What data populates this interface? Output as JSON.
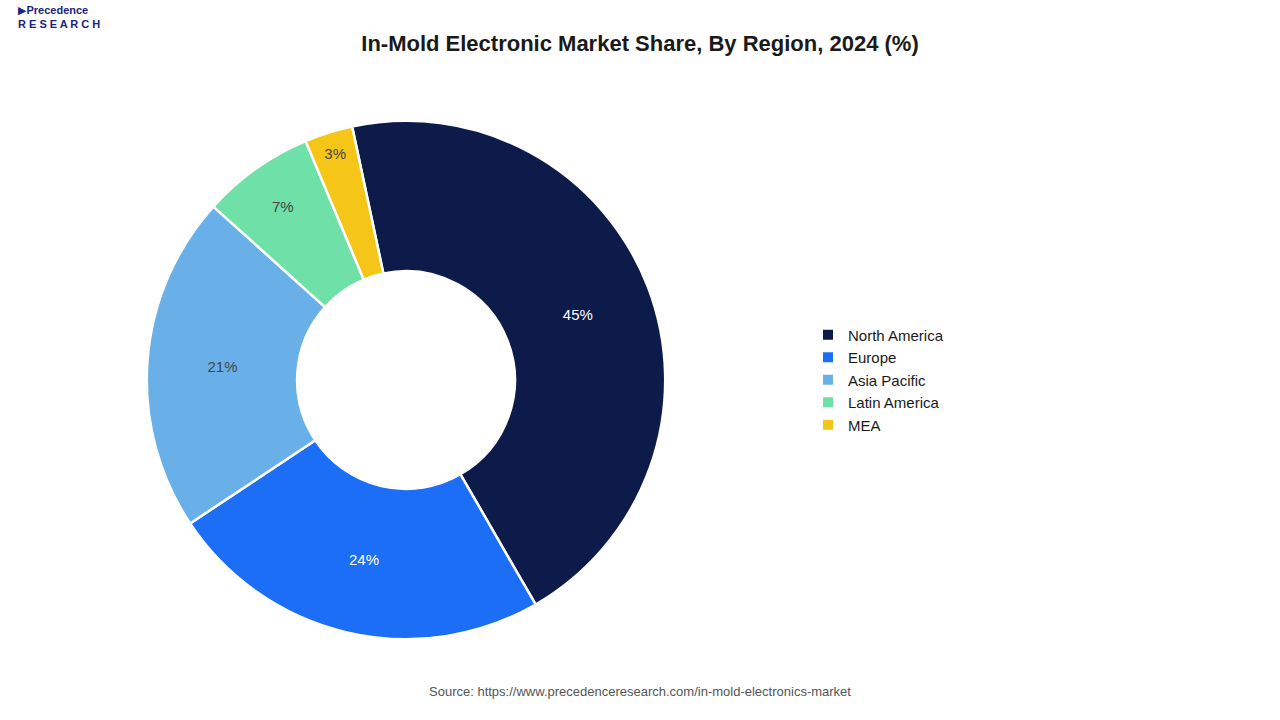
{
  "chart_data": {
    "type": "donut",
    "title": "In-Mold Electronic Market Share, By Region, 2024 (%)",
    "categories": [
      "North America",
      "Europe",
      "Asia Pacific",
      "Latin America",
      "MEA"
    ],
    "values": [
      45,
      24,
      21,
      7,
      3
    ],
    "value_labels": [
      "45%",
      "24%",
      "21%",
      "7%",
      "3%"
    ],
    "colors": [
      "#0d1b4b",
      "#1c6ef7",
      "#6ab0e8",
      "#6fe0a8",
      "#f5c518"
    ],
    "data_labels": true,
    "legend": "right",
    "annotations": [
      "▶Precedence\nR E S E A R C H",
      "Source: https://www.precedenceresearch.com/in-mold-electronics-market"
    ]
  }
}
